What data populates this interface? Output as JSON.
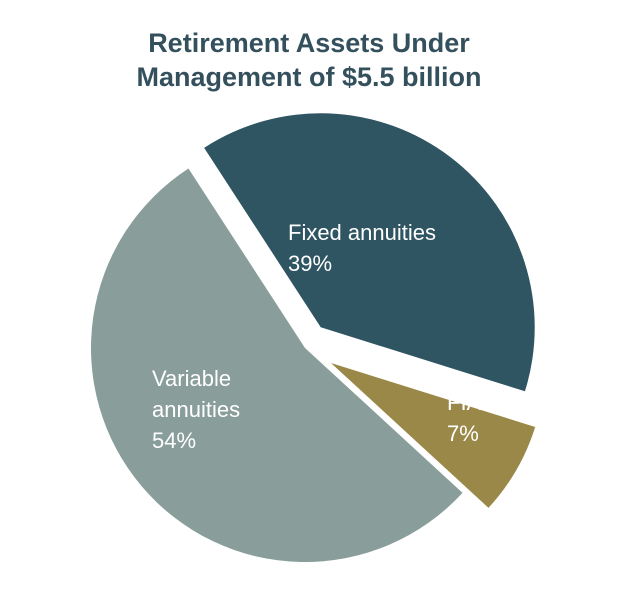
{
  "chart_data": {
    "type": "pie",
    "title_lines": [
      "Retirement Assets Under",
      "Management of $5.5 billion"
    ],
    "slices": [
      {
        "label_lines": [
          "Fixed annuities",
          "39%"
        ],
        "value": 39,
        "color": "#2f5462"
      },
      {
        "label_lines": [
          "FIA",
          "7%"
        ],
        "value": 7,
        "color": "#9a8848"
      },
      {
        "label_lines": [
          "Variable",
          "annuities",
          "54%"
        ],
        "value": 54,
        "color": "#899e9a"
      }
    ],
    "exploded": true,
    "legend": "none"
  }
}
